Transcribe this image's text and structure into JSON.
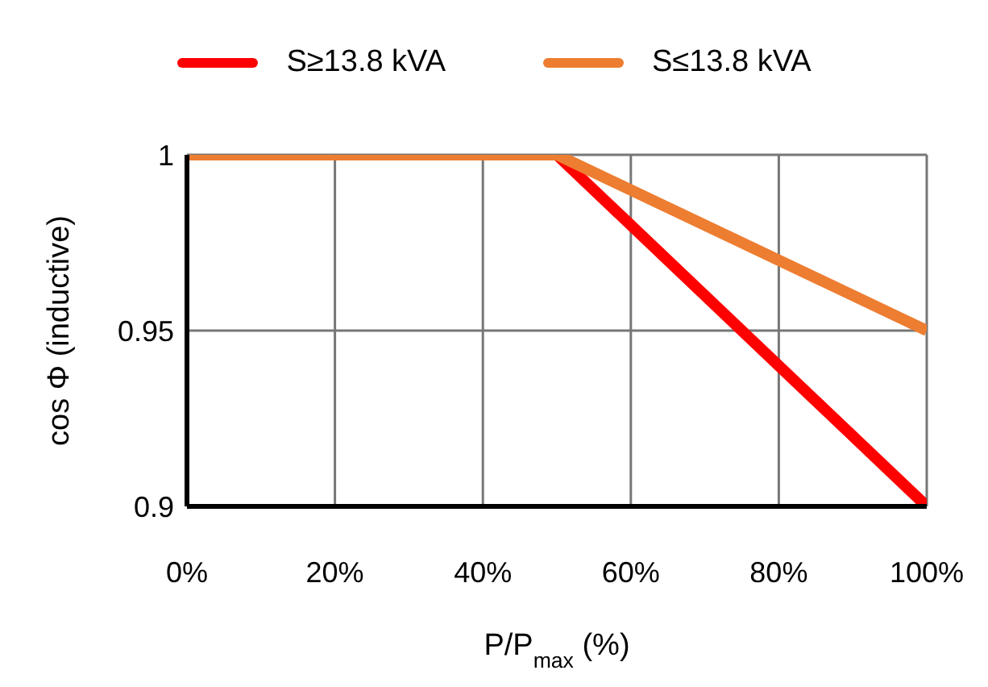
{
  "chart_data": {
    "type": "line",
    "xlabel": "P/P$_{max}$ (%)",
    "ylabel": "cos Φ (inductive)",
    "x": [
      0,
      50,
      100
    ],
    "series": [
      {
        "name": "S≥13.8 kVA",
        "color": "#ff0000",
        "values": [
          1,
          1,
          0.9
        ]
      },
      {
        "name": "S≤13.8 kVA",
        "color": "#ed7d31",
        "values": [
          1,
          1,
          0.95
        ]
      }
    ],
    "xlim": [
      0,
      100
    ],
    "xticks": [
      {
        "value": 0,
        "label": "0%"
      },
      {
        "value": 20,
        "label": "20%"
      },
      {
        "value": 40,
        "label": "40%"
      },
      {
        "value": 60,
        "label": "60%"
      },
      {
        "value": 80,
        "label": "80%"
      },
      {
        "value": 100,
        "label": "100%"
      }
    ],
    "ylim": [
      0.9,
      1
    ],
    "yticks": [
      0.9,
      0.95,
      1
    ],
    "grid": true,
    "legend": "top",
    "marker": "none",
    "line_style": "solid"
  }
}
